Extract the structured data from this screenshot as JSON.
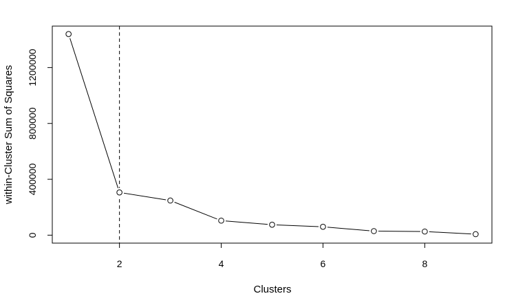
{
  "chart_data": {
    "type": "line",
    "title": "",
    "xlabel": "Clusters",
    "ylabel": "within-Cluster Sum of Squares",
    "x": [
      1,
      2,
      3,
      4,
      5,
      6,
      7,
      8,
      9
    ],
    "series": [
      {
        "values": [
          1440000,
          306000,
          248000,
          104000,
          75000,
          60000,
          29000,
          26000,
          7000
        ]
      }
    ],
    "x_ticks": [
      2,
      4,
      6,
      8
    ],
    "y_ticks": [
      0,
      400000,
      800000,
      1200000
    ],
    "xlim": [
      0.68,
      9.32
    ],
    "ylim": [
      -57000,
      1497000
    ],
    "reference_line": {
      "x": 2,
      "style": "dashed"
    },
    "marker": "open-circle",
    "grid": false,
    "legend": "none",
    "colors": {
      "line": "#000000",
      "marker_fill": "#ffffff",
      "axis": "#000000"
    }
  }
}
